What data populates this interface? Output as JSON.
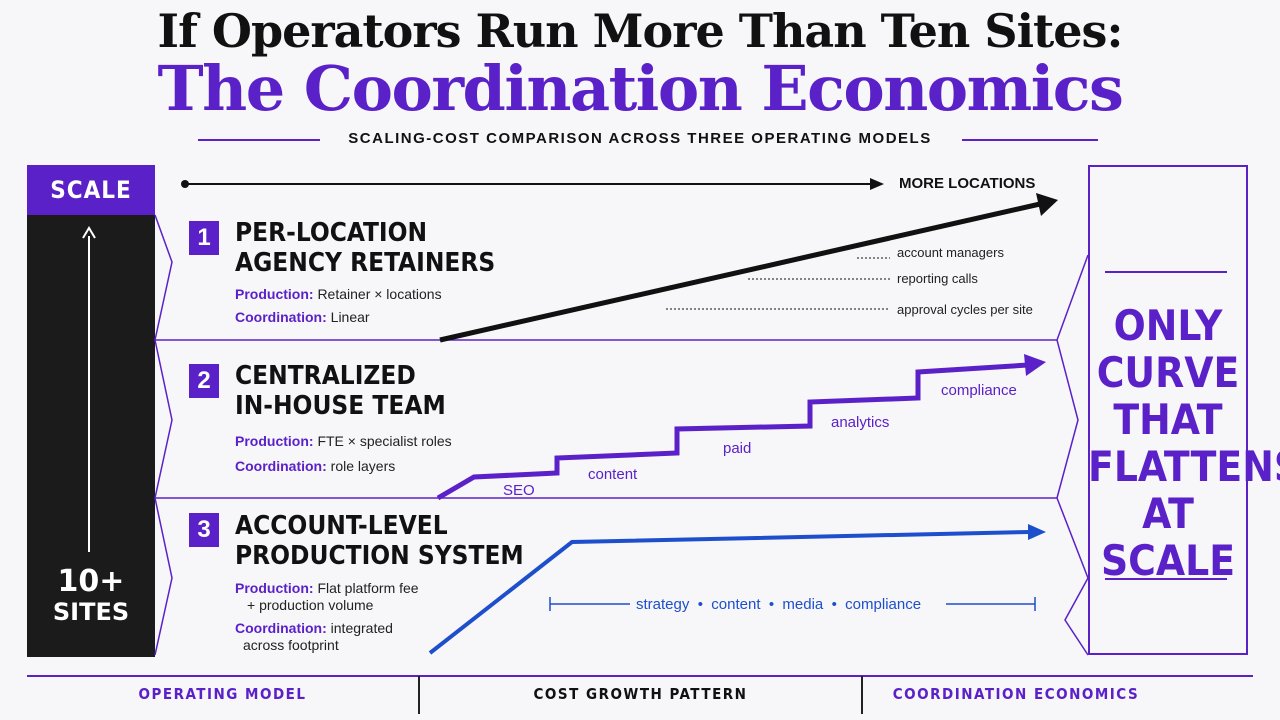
{
  "header": {
    "title_line1": "If Operators Run More Than Ten Sites:",
    "title_line2": "The Coordination Economics",
    "subtitle": "SCALING-COST COMPARISON ACROSS THREE OPERATING MODELS"
  },
  "scale": {
    "label": "SCALE",
    "sites_big": "10+",
    "sites_small": "SITES"
  },
  "axis": {
    "label": "MORE LOCATIONS"
  },
  "models": [
    {
      "number": "1",
      "name_line1": "PER-LOCATION",
      "name_line2": "AGENCY RETAINERS",
      "production_key": "Production:",
      "production_val": "Retainer × locations",
      "coordination_key": "Coordination:",
      "coordination_val": "Linear",
      "curve_labels": [
        "account managers",
        "reporting calls",
        "approval cycles per site"
      ]
    },
    {
      "number": "2",
      "name_line1": "CENTRALIZED",
      "name_line2": "IN-HOUSE TEAM",
      "production_key": "Production:",
      "production_val": "FTE × specialist roles",
      "coordination_key": "Coordination:",
      "coordination_val": "role layers",
      "curve_labels": [
        "SEO",
        "content",
        "paid",
        "analytics",
        "compliance"
      ]
    },
    {
      "number": "3",
      "name_line1": "ACCOUNT-LEVEL",
      "name_line2": "PRODUCTION SYSTEM",
      "production_key": "Production:",
      "production_val": "Flat platform fee",
      "production_val2": "+ production volume",
      "coordination_key": "Coordination:",
      "coordination_val": "integrated",
      "coordination_val2": "across footprint",
      "curve_labels": [
        "strategy  •  content  •  media  •  compliance"
      ]
    }
  ],
  "callout": {
    "lines": [
      "ONLY",
      "CURVE",
      "THAT",
      "FLATTENS",
      "AT SCALE"
    ]
  },
  "footer": {
    "col1": "OPERATING MODEL",
    "col2": "COST GROWTH PATTERN",
    "col3": "COORDINATION ECONOMICS"
  },
  "colors": {
    "accent_purple": "#5b21c9",
    "curve_blue": "#1d4fcc",
    "curve_black": "#111111",
    "scale_bar": "#1b1b1b"
  }
}
